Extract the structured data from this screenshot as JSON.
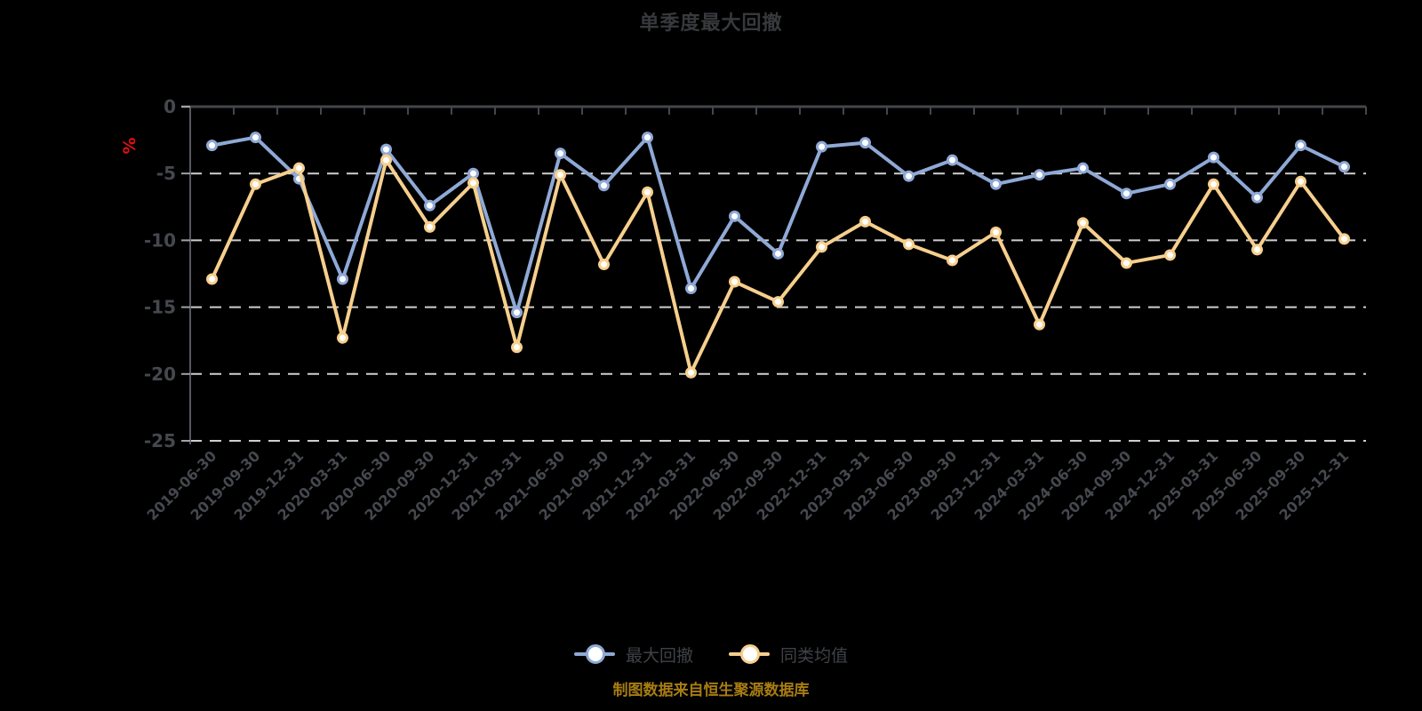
{
  "page": {
    "background": "#000000"
  },
  "chart_data": {
    "type": "line",
    "title": "单季度最大回撤",
    "title_color": "#37393d",
    "y_unit": "%",
    "y_unit_color": "#e01010",
    "source_note": "制图数据来自恒生聚源数据库",
    "source_note_color": "#a87d12",
    "axis_label_color": "#45484e",
    "axis_line_color": "#43464b",
    "y_axis_line_color": "#55585c",
    "y_tick_color": "#a0a3a8",
    "ylim": [
      -25,
      0
    ],
    "yticks": [
      0,
      -5,
      -10,
      -15,
      -20,
      -25
    ],
    "grid": {
      "horizontal_dashed": true,
      "color": "#cfcfcf"
    },
    "legend_position": "bottom-center",
    "marker_style": "circle-white-fill",
    "categories": [
      "2019-06-30",
      "2019-09-30",
      "2019-12-31",
      "2020-03-31",
      "2020-06-30",
      "2020-09-30",
      "2020-12-31",
      "2021-03-31",
      "2021-06-30",
      "2021-09-30",
      "2021-12-31",
      "2022-03-31",
      "2022-06-30",
      "2022-09-30",
      "2022-12-31",
      "2023-03-31",
      "2023-06-30",
      "2023-09-30",
      "2023-12-31",
      "2024-03-31",
      "2024-06-30",
      "2024-09-30",
      "2024-12-31",
      "2025-03-31",
      "2025-06-30",
      "2025-09-30",
      "2025-12-31"
    ],
    "series": [
      {
        "name": "最大回撤",
        "color": "#8FA9D6",
        "values": [
          -2.9,
          -2.3,
          -5.4,
          -12.9,
          -3.2,
          -7.4,
          -5.0,
          -15.4,
          -3.5,
          -5.9,
          -2.3,
          -13.6,
          -8.2,
          -11.0,
          -3.0,
          -2.7,
          -5.2,
          -4.0,
          -5.8,
          -5.1,
          -4.6,
          -6.5,
          -5.8,
          -3.8,
          -6.8,
          -2.9,
          -4.5
        ]
      },
      {
        "name": "同类均值",
        "color": "#F7CF8D",
        "values": [
          -12.9,
          -5.8,
          -4.6,
          -17.3,
          -4.0,
          -9.0,
          -5.7,
          -18.0,
          -5.1,
          -11.8,
          -6.4,
          -19.9,
          -13.1,
          -14.6,
          -10.5,
          -8.6,
          -10.3,
          -11.5,
          -9.4,
          -16.3,
          -8.7,
          -11.7,
          -11.1,
          -5.8,
          -10.7,
          -5.6,
          -9.9
        ]
      }
    ]
  }
}
